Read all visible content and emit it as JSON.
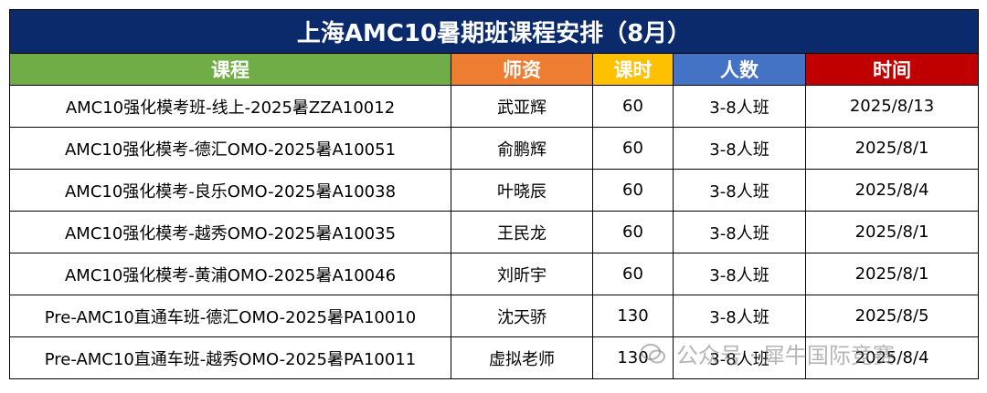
{
  "title": "上海AMC10暑期班课程安排（8月）",
  "columns": [
    {
      "label": "课程",
      "color": "#70ad47"
    },
    {
      "label": "师资",
      "color": "#ed7d31"
    },
    {
      "label": "课时",
      "color": "#ffc000"
    },
    {
      "label": "人数",
      "color": "#4472c4"
    },
    {
      "label": "时间",
      "color": "#c00000"
    }
  ],
  "rows": [
    [
      "AMC10强化模考班-线上-2025暑ZZA10012",
      "武亚辉",
      "60",
      "3-8人班",
      "2025/8/13"
    ],
    [
      "AMC10强化模考-德汇OMO-2025暑A10051",
      "俞鹏辉",
      "60",
      "3-8人班",
      "2025/8/1"
    ],
    [
      "AMC10强化模考-良乐OMO-2025暑A10038",
      "叶晓辰",
      "60",
      "3-8人班",
      "2025/8/4"
    ],
    [
      "AMC10强化模考-越秀OMO-2025暑A10035",
      "王民龙",
      "60",
      "3-8人班",
      "2025/8/1"
    ],
    [
      "AMC10强化模考-黄浦OMO-2025暑A10046",
      "刘昕宇",
      "60",
      "3-8人班",
      "2025/8/1"
    ],
    [
      "Pre-AMC10直通车班-德汇OMO-2025暑PA10010",
      "沈天骄",
      "130",
      "3-8人班",
      "2025/8/5"
    ],
    [
      "Pre-AMC10直通车班-越秀OMO-2025暑PA10011",
      "虚拟老师",
      "130",
      "3-8人班",
      "2025/8/4"
    ]
  ],
  "watermark": "公众号 · 犀牛国际竞赛"
}
